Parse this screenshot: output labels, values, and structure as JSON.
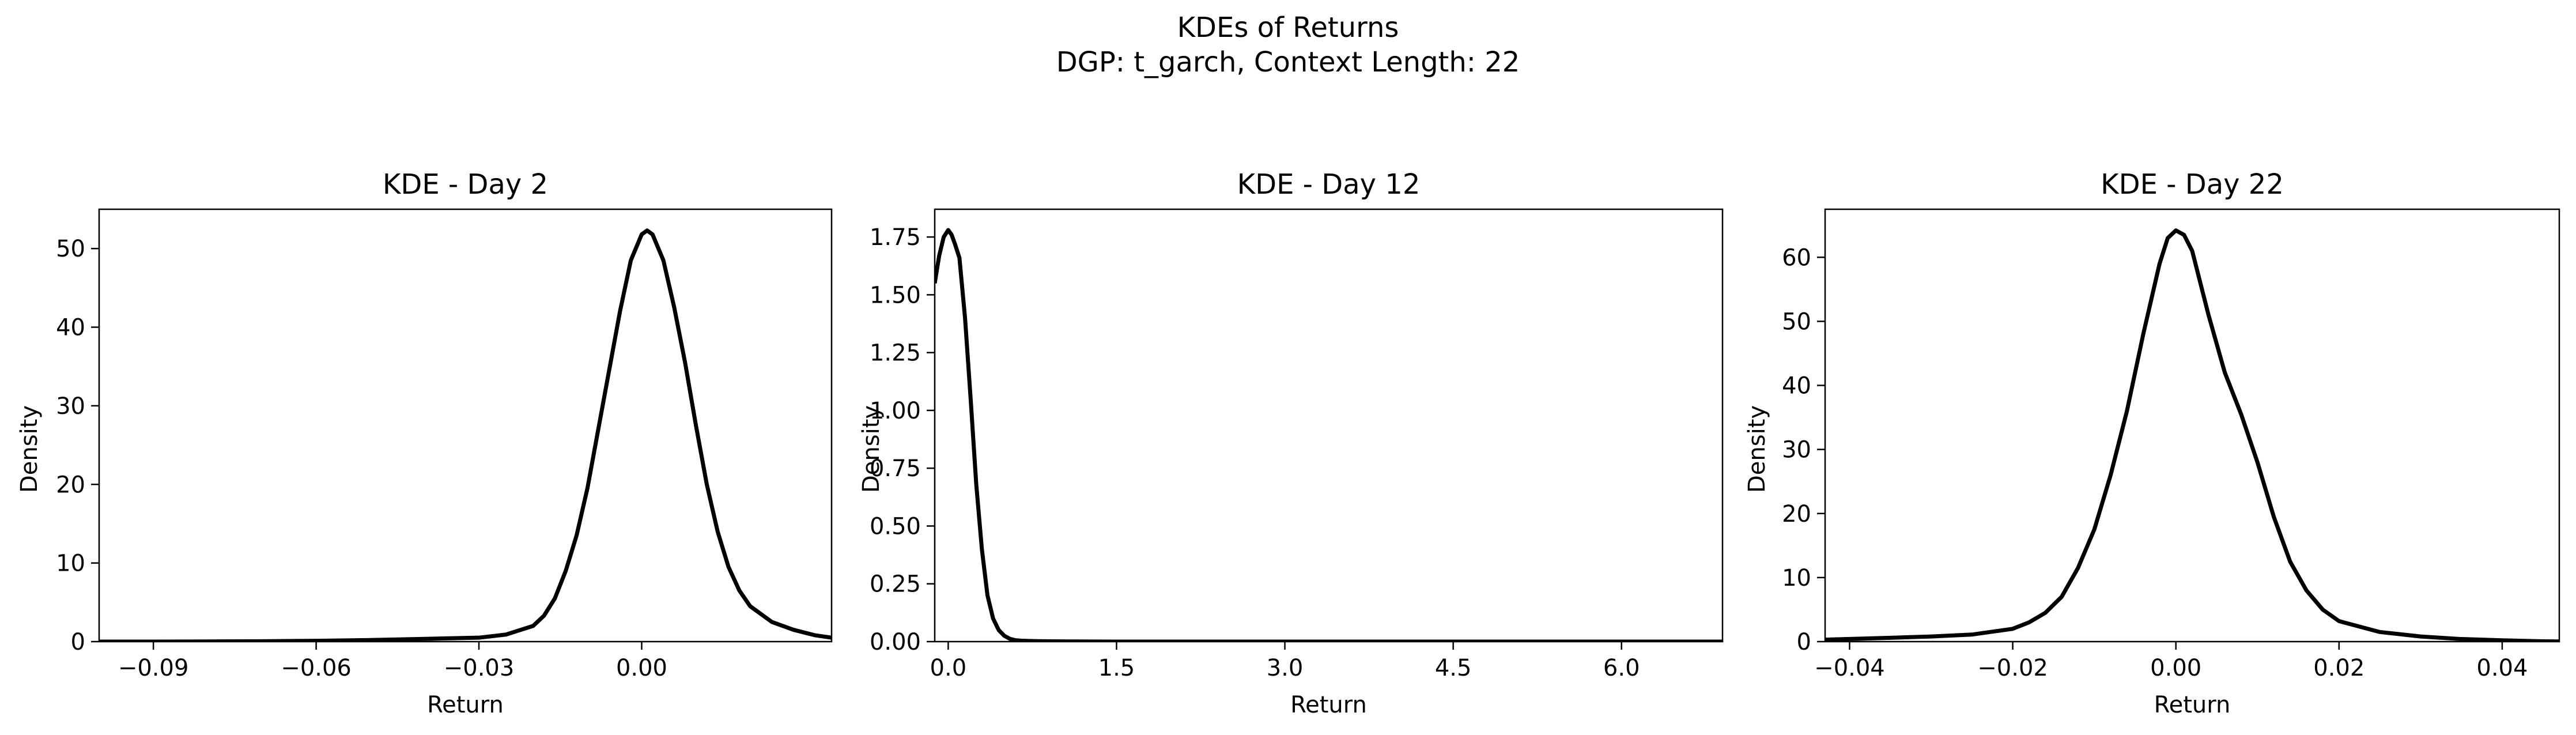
{
  "figure": {
    "title_line1": "KDEs of Returns",
    "title_line2": "DGP: t_garch, Context Length: 22"
  },
  "chart_data": [
    {
      "type": "line",
      "title": "KDE - Day 2",
      "xlabel": "Return",
      "ylabel": "Density",
      "xlim": [
        -0.1,
        0.035
      ],
      "ylim": [
        0,
        55
      ],
      "xticks": [
        -0.09,
        -0.06,
        -0.03,
        0.0
      ],
      "xtick_labels": [
        "−0.09",
        "−0.06",
        "−0.03",
        "0.00"
      ],
      "yticks": [
        0,
        10,
        20,
        30,
        40,
        50
      ],
      "ytick_labels": [
        "0",
        "10",
        "20",
        "30",
        "40",
        "50"
      ],
      "line_color": "#000000",
      "series": [
        {
          "x": [
            -0.1,
            -0.09,
            -0.08,
            -0.07,
            -0.06,
            -0.05,
            -0.04,
            -0.03,
            -0.025,
            -0.02,
            -0.018,
            -0.016,
            -0.014,
            -0.012,
            -0.01,
            -0.008,
            -0.006,
            -0.004,
            -0.002,
            0.0,
            0.001,
            0.002,
            0.004,
            0.006,
            0.008,
            0.01,
            0.012,
            0.014,
            0.016,
            0.018,
            0.02,
            0.024,
            0.028,
            0.032,
            0.035
          ],
          "y": [
            0.0,
            0.0,
            0.02,
            0.05,
            0.1,
            0.2,
            0.35,
            0.5,
            0.9,
            2.0,
            3.3,
            5.5,
            9.0,
            13.5,
            19.5,
            27.0,
            34.5,
            42.0,
            48.5,
            51.8,
            52.3,
            51.8,
            48.5,
            42.5,
            35.5,
            27.5,
            20.0,
            14.0,
            9.5,
            6.5,
            4.5,
            2.5,
            1.5,
            0.8,
            0.5
          ]
        }
      ]
    },
    {
      "type": "line",
      "title": "KDE - Day 12",
      "xlabel": "Return",
      "ylabel": "Density",
      "xlim": [
        -0.12,
        6.9
      ],
      "ylim": [
        0,
        1.87
      ],
      "xticks": [
        0.0,
        1.5,
        3.0,
        4.5,
        6.0
      ],
      "xtick_labels": [
        "0.0",
        "1.5",
        "3.0",
        "4.5",
        "6.0"
      ],
      "yticks": [
        0.0,
        0.25,
        0.5,
        0.75,
        1.0,
        1.25,
        1.5,
        1.75
      ],
      "ytick_labels": [
        "0.00",
        "0.25",
        "0.50",
        "0.75",
        "1.00",
        "1.25",
        "1.50",
        "1.75"
      ],
      "line_color": "#000000",
      "series": [
        {
          "x": [
            -0.12,
            -0.08,
            -0.04,
            0.0,
            0.03,
            0.06,
            0.1,
            0.15,
            0.2,
            0.25,
            0.3,
            0.35,
            0.4,
            0.45,
            0.5,
            0.55,
            0.6,
            0.65,
            0.7,
            0.8,
            1.0,
            1.5,
            2.5,
            4.0,
            5.5,
            6.9
          ],
          "y": [
            1.55,
            1.67,
            1.75,
            1.78,
            1.76,
            1.72,
            1.66,
            1.4,
            1.05,
            0.68,
            0.4,
            0.2,
            0.1,
            0.05,
            0.025,
            0.012,
            0.006,
            0.004,
            0.003,
            0.002,
            0.001,
            0.0,
            0.0,
            0.0,
            0.0,
            0.0
          ]
        }
      ]
    },
    {
      "type": "line",
      "title": "KDE - Day 22",
      "xlabel": "Return",
      "ylabel": "Density",
      "xlim": [
        -0.043,
        0.047
      ],
      "ylim": [
        0,
        67.5
      ],
      "xticks": [
        -0.04,
        -0.02,
        0.0,
        0.02,
        0.04
      ],
      "xtick_labels": [
        "−0.04",
        "−0.02",
        "0.00",
        "0.02",
        "0.04"
      ],
      "yticks": [
        0,
        10,
        20,
        30,
        40,
        50,
        60
      ],
      "ytick_labels": [
        "0",
        "10",
        "20",
        "30",
        "40",
        "50",
        "60"
      ],
      "line_color": "#000000",
      "series": [
        {
          "x": [
            -0.043,
            -0.035,
            -0.03,
            -0.025,
            -0.02,
            -0.018,
            -0.016,
            -0.014,
            -0.012,
            -0.01,
            -0.008,
            -0.006,
            -0.004,
            -0.002,
            -0.001,
            0.0,
            0.001,
            0.002,
            0.004,
            0.006,
            0.008,
            0.01,
            0.012,
            0.014,
            0.016,
            0.018,
            0.02,
            0.025,
            0.03,
            0.035,
            0.04,
            0.045,
            0.047
          ],
          "y": [
            0.3,
            0.6,
            0.8,
            1.1,
            2.0,
            3.0,
            4.5,
            7.0,
            11.5,
            17.5,
            26.0,
            36.0,
            48.0,
            59.0,
            63.0,
            64.2,
            63.5,
            61.0,
            51.0,
            42.0,
            35.5,
            28.0,
            19.5,
            12.5,
            8.0,
            5.0,
            3.2,
            1.5,
            0.8,
            0.4,
            0.2,
            0.05,
            0.02
          ]
        }
      ]
    }
  ]
}
